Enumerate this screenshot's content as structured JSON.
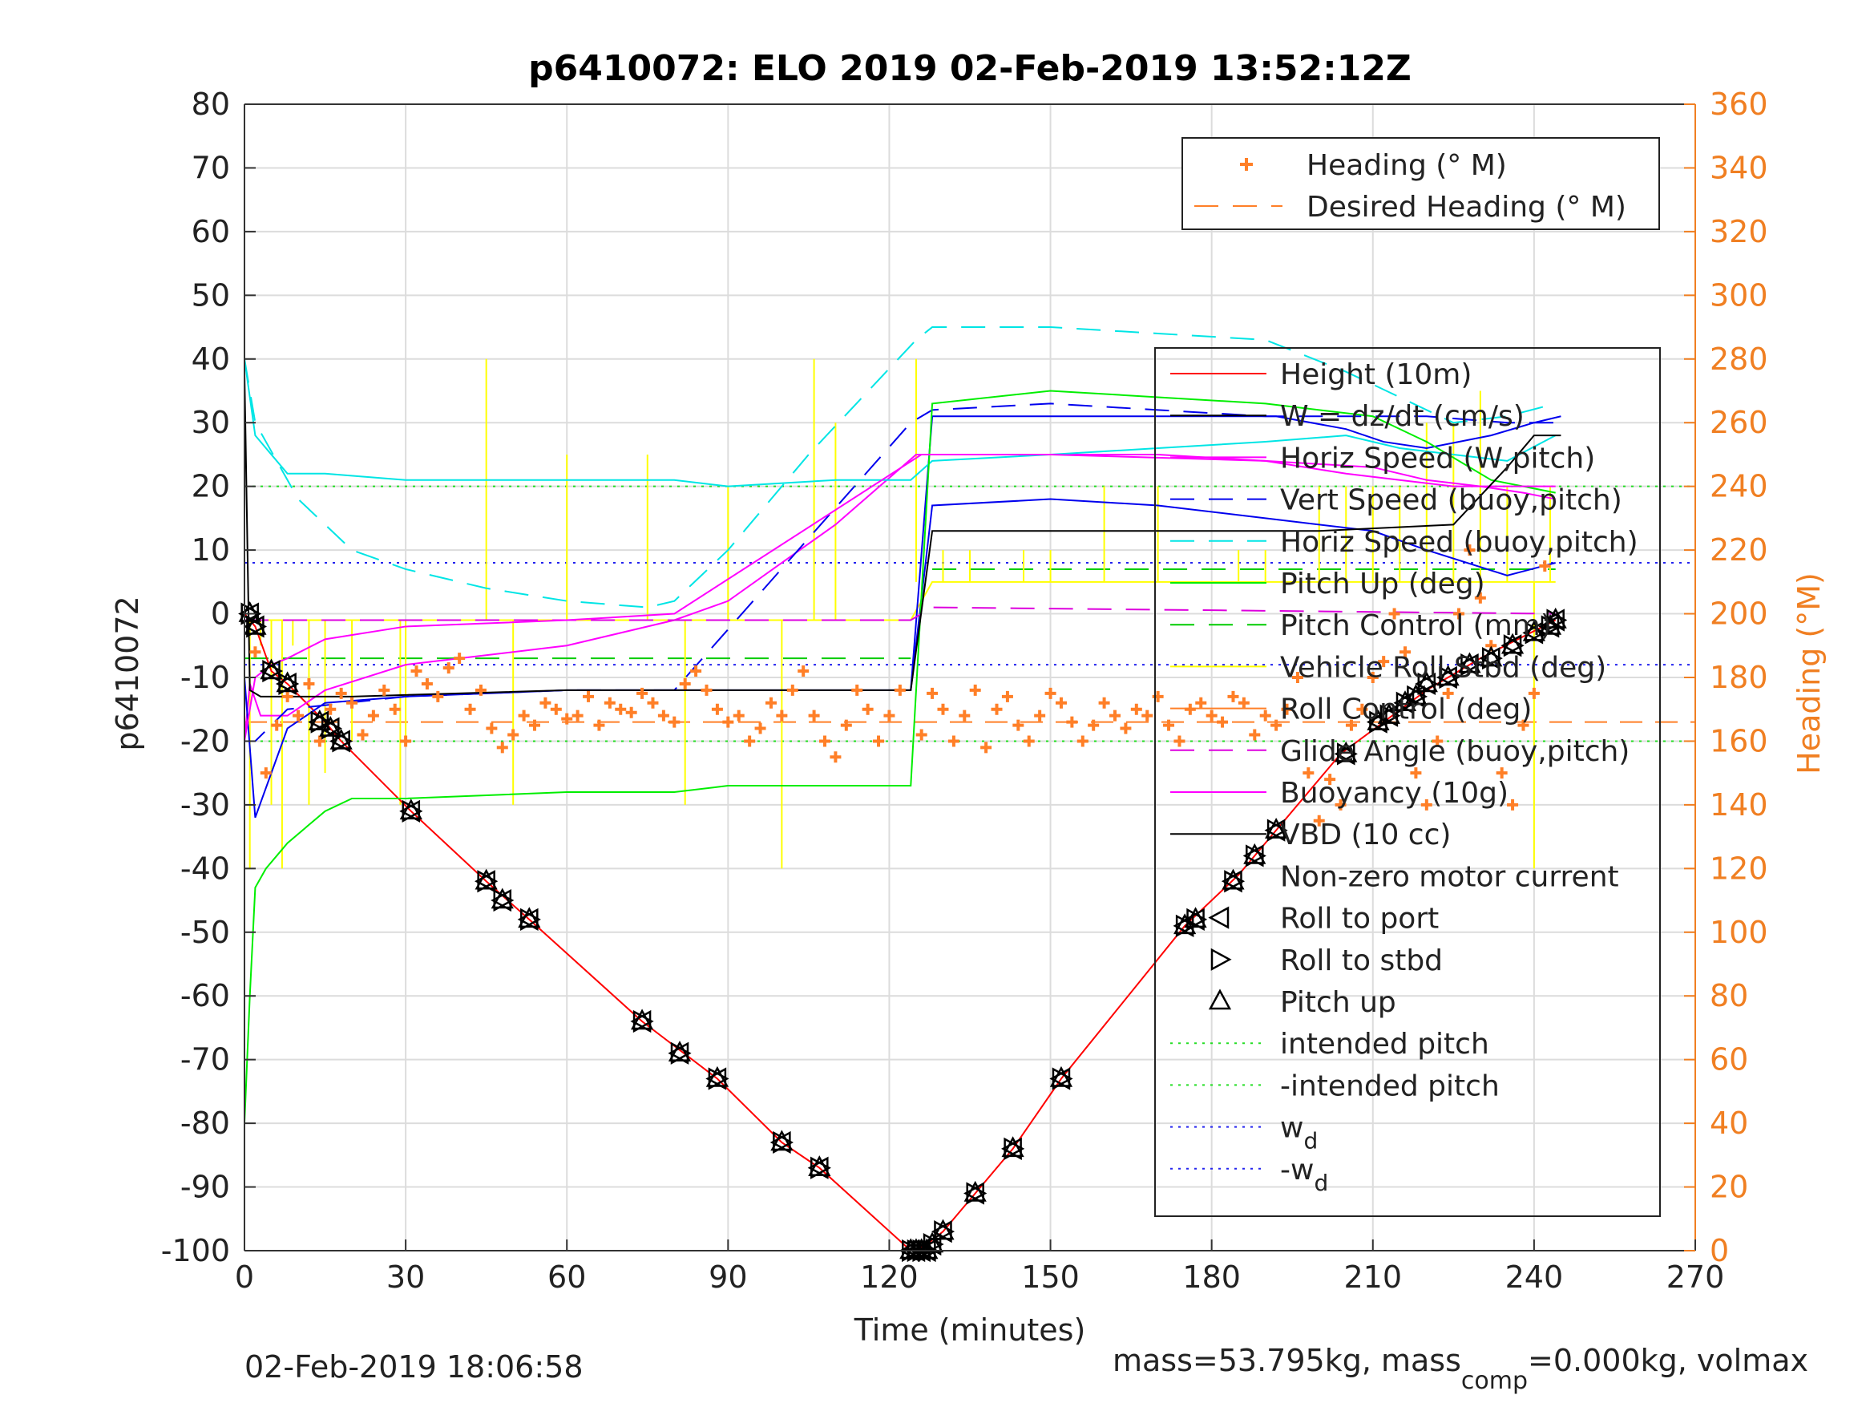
{
  "chart_data": {
    "type": "line",
    "title": "p6410072: ELO 2019 02-Feb-2019 13:52:12Z",
    "xlabel": "Time (minutes)",
    "ylabel": "p6410072",
    "y2label": "Heading (°M)",
    "xlim": [
      0,
      270
    ],
    "ylim": [
      -100,
      80
    ],
    "y2lim": [
      0,
      360
    ],
    "xticks": [
      "0",
      "30",
      "60",
      "90",
      "120",
      "150",
      "180",
      "210",
      "240",
      "270"
    ],
    "yticks": [
      "80",
      "70",
      "60",
      "50",
      "40",
      "30",
      "20",
      "10",
      "0",
      "-10",
      "-20",
      "-30",
      "-40",
      "-50",
      "-60",
      "-70",
      "-80",
      "-90",
      "-100"
    ],
    "y2ticks": [
      "360",
      "340",
      "320",
      "300",
      "280",
      "260",
      "240",
      "220",
      "200",
      "180",
      "160",
      "140",
      "120",
      "100",
      "80",
      "60",
      "40",
      "20",
      "0"
    ],
    "grid": true,
    "footer_left": "02-Feb-2019 18:06:58",
    "footer_right": "mass=53.795kg, mass",
    "footer_right_sub": "comp",
    "footer_right_tail": "=0.000kg, volmax",
    "colors": {
      "height": "#ff0000",
      "w": "#000000",
      "horiz_speed": "#ff00ff",
      "vert_speed": "#0000ee",
      "horiz_speed_buoy": "#00e5e5",
      "pitch_up": "#00ee00",
      "pitch_control": "#00cc00",
      "vehicle_roll": "#ffff00",
      "roll_control": "#ff7f27",
      "glide_angle": "#dd00dd",
      "buoyancy": "#ff00ff",
      "vbd": "#000000",
      "heading": "#ff7f27",
      "intended": "#22dd22",
      "wd": "#2222ee",
      "right_axis": "#f07f22"
    },
    "legend_heading": [
      {
        "label": "Heading (° M)"
      },
      {
        "label": "Desired Heading (° M)"
      }
    ],
    "legend_main": [
      {
        "label": "Height (10m)"
      },
      {
        "label": "W = dz/dt (cm/s)"
      },
      {
        "label": "Horiz Speed (W,pitch)"
      },
      {
        "label": "Vert Speed (buoy,pitch)"
      },
      {
        "label": "Horiz Speed (buoy,pitch)"
      },
      {
        "label": "Pitch Up (deg)"
      },
      {
        "label": "Pitch Control (mm)"
      },
      {
        "label": "Vehicle Roll Stbd (deg)"
      },
      {
        "label": "Roll Control (deg)"
      },
      {
        "label": "Glide Angle (buoy,pitch)"
      },
      {
        "label": "Buoyancy (10g)"
      },
      {
        "label": "VBD (10 cc)"
      },
      {
        "label": "Non-zero motor current"
      },
      {
        "label": "Roll to port"
      },
      {
        "label": "Roll to stbd"
      },
      {
        "label": "Pitch up"
      },
      {
        "label": "intended pitch"
      },
      {
        "label": "-intended pitch"
      },
      {
        "label": "w",
        "sub": "d"
      },
      {
        "label": "-w",
        "sub": "d"
      }
    ],
    "series": [
      {
        "key": "height",
        "name": "Height (10m)",
        "x": [
          0,
          2,
          5,
          8,
          15,
          18,
          31,
          45,
          53,
          74,
          88,
          100,
          107,
          124,
          127,
          130,
          136,
          143,
          152,
          175,
          185,
          192,
          204,
          212,
          220,
          230,
          244
        ],
        "y": [
          0,
          -2,
          -9,
          -11,
          -17,
          -20,
          -31,
          -42,
          -48,
          -64,
          -73,
          -83,
          -87,
          -100,
          -99,
          -97,
          -91,
          -84,
          -73,
          -49,
          -41,
          -34,
          -22,
          -17,
          -12,
          -7,
          -1
        ]
      },
      {
        "key": "w",
        "name": "W = dz/dt (cm/s)",
        "x": [
          124,
          128,
          150,
          170,
          192,
          205,
          212,
          220,
          232,
          240,
          245
        ],
        "y": [
          -12,
          31,
          31,
          31,
          31,
          29,
          27,
          26,
          28,
          30,
          31
        ]
      },
      {
        "key": "horiz_speed",
        "name": "Horiz Speed (W,pitch)",
        "x": [
          0,
          1,
          3,
          8,
          15,
          30,
          60,
          80,
          90,
          110,
          125,
          130,
          150,
          170,
          190,
          210,
          220,
          230,
          238,
          244
        ],
        "y": [
          -20,
          -11,
          -16,
          -16,
          -12,
          -8,
          -5,
          -1,
          2,
          14,
          25,
          25,
          25,
          25,
          24,
          23,
          21,
          20,
          19,
          18
        ]
      },
      {
        "key": "vert_speed",
        "name": "Vert Speed (buoy,pitch)",
        "x": [
          0,
          2,
          8,
          15,
          30,
          60,
          80,
          124,
          128,
          150,
          170,
          190,
          210,
          220,
          235,
          244
        ],
        "y": [
          -10,
          -32,
          -18,
          -14,
          -13,
          -12,
          -12,
          -12,
          17,
          18,
          17,
          15,
          13,
          10,
          6,
          8
        ]
      },
      {
        "key": "horiz_speed_buoy",
        "name": "Horiz Speed (buoy,pitch)",
        "x": [
          0,
          2,
          5,
          8,
          15,
          30,
          60,
          80,
          90,
          110,
          124,
          128,
          150,
          170,
          190,
          205,
          215,
          225,
          235,
          244
        ],
        "y": [
          40,
          28,
          25,
          22,
          22,
          21,
          21,
          21,
          20,
          21,
          21,
          24,
          25,
          26,
          27,
          28,
          26,
          25,
          24,
          28
        ]
      },
      {
        "key": "vert_speed_dashed",
        "name": "Vert Speed (buoy,pitch) dashed",
        "x": [
          0,
          2,
          8,
          30,
          60,
          80,
          124,
          128,
          150,
          170,
          190,
          210,
          220,
          235,
          244
        ],
        "y": [
          -20,
          -20,
          -15,
          -13,
          -12,
          -12,
          30,
          32,
          33,
          32,
          31,
          31,
          31,
          30,
          30
        ]
      },
      {
        "key": "horiz_speed_buoy_dashed",
        "name": "Horiz Speed (buoy,pitch) dashed",
        "x": [
          0,
          2,
          10,
          20,
          30,
          45,
          60,
          75,
          80,
          90,
          105,
          125,
          128,
          150,
          170,
          190,
          205,
          215,
          225,
          235,
          244
        ],
        "y": [
          40,
          30,
          18,
          10,
          7,
          4,
          2,
          1,
          2,
          10,
          25,
          43,
          45,
          45,
          44,
          43,
          38,
          34,
          30,
          31,
          33
        ]
      },
      {
        "key": "pitch_up",
        "name": "Pitch Up (deg)",
        "x": [
          0,
          1,
          2,
          4,
          8,
          15,
          20,
          30,
          60,
          80,
          90,
          110,
          124,
          128,
          150,
          170,
          190,
          210,
          220,
          232,
          244
        ],
        "y": [
          -80,
          -60,
          -43,
          -40,
          -36,
          -31,
          -29,
          -29,
          -28,
          -28,
          -27,
          -27,
          -27,
          33,
          35,
          34,
          33,
          31,
          27,
          21,
          19
        ]
      },
      {
        "key": "glide_angle",
        "name": "Glide Angle (buoy,pitch)",
        "x": [
          0,
          3,
          15,
          60,
          124,
          128,
          244
        ],
        "y": [
          -1,
          -1,
          -1,
          -1,
          -1,
          1,
          0
        ]
      },
      {
        "key": "buoyancy",
        "name": "Buoyancy (10g)",
        "x": [
          0,
          2,
          5,
          8,
          15,
          30,
          60,
          80,
          126,
          150,
          190,
          205,
          215,
          225,
          244
        ],
        "y": [
          -20,
          -10,
          -8,
          -7,
          -4,
          -2,
          -1,
          0,
          25,
          25,
          24,
          22,
          21,
          20,
          20
        ]
      },
      {
        "key": "vbd",
        "name": "VBD (10 cc)",
        "x": [
          0,
          1,
          3,
          8,
          20,
          60,
          124,
          128,
          200,
          225,
          235,
          240,
          245
        ],
        "y": [
          38,
          -12,
          -13,
          -13,
          -13,
          -12,
          -12,
          13,
          13,
          14,
          23,
          28,
          28
        ]
      }
    ],
    "reference_lines": [
      {
        "name": "intended pitch",
        "y": 20
      },
      {
        "name": "-intended pitch",
        "y": -20
      },
      {
        "name": "w_d",
        "y": 8
      },
      {
        "name": "-w_d",
        "y": -8
      },
      {
        "name": "Pitch Control (mm) upper",
        "y": -7,
        "x": [
          0,
          124
        ]
      },
      {
        "name": "Pitch Control (mm) lower",
        "y": 7,
        "x": [
          128,
          244
        ]
      },
      {
        "name": "Desired Heading (° M)",
        "y2": 166
      }
    ],
    "heading_points": {
      "x": [
        2,
        4,
        6,
        8,
        10,
        12,
        14,
        16,
        18,
        20,
        22,
        24,
        26,
        28,
        30,
        32,
        34,
        36,
        38,
        40,
        42,
        44,
        46,
        48,
        50,
        52,
        54,
        56,
        58,
        60,
        62,
        64,
        66,
        68,
        70,
        72,
        74,
        76,
        78,
        80,
        82,
        84,
        86,
        88,
        90,
        92,
        94,
        96,
        98,
        100,
        102,
        104,
        106,
        108,
        110,
        112,
        114,
        116,
        118,
        120,
        122,
        126,
        128,
        130,
        132,
        134,
        136,
        138,
        140,
        142,
        144,
        146,
        148,
        150,
        152,
        154,
        156,
        158,
        160,
        162,
        164,
        166,
        168,
        170,
        172,
        174,
        176,
        178,
        180,
        182,
        184,
        186,
        188,
        190,
        192,
        194,
        196,
        198,
        200,
        202,
        204,
        206,
        208,
        210,
        212,
        214,
        216,
        218,
        220,
        222,
        224,
        226,
        228,
        230,
        232,
        234,
        236,
        238,
        240,
        242
      ],
      "y": [
        188,
        150,
        165,
        174,
        168,
        178,
        160,
        170,
        175,
        172,
        162,
        168,
        176,
        170,
        160,
        182,
        178,
        174,
        183,
        186,
        170,
        176,
        164,
        158,
        162,
        168,
        165,
        172,
        170,
        167,
        168,
        174,
        165,
        172,
        170,
        169,
        175,
        172,
        168,
        166,
        178,
        182,
        176,
        170,
        166,
        168,
        160,
        164,
        172,
        168,
        176,
        182,
        168,
        160,
        155,
        165,
        176,
        170,
        160,
        168,
        176,
        162,
        175,
        170,
        160,
        168,
        176,
        158,
        170,
        174,
        165,
        160,
        168,
        175,
        172,
        166,
        160,
        165,
        172,
        168,
        164,
        170,
        168,
        174,
        165,
        160,
        170,
        172,
        168,
        166,
        174,
        172,
        162,
        168,
        165,
        170,
        180,
        150,
        135,
        148,
        140,
        165,
        170,
        180,
        185,
        200,
        188,
        150,
        140,
        160,
        175,
        200,
        220,
        205,
        190,
        150,
        140,
        165,
        175,
        215
      ]
    },
    "markers": {
      "x": [
        1,
        2,
        5,
        8,
        14,
        16,
        18,
        31,
        45,
        48,
        53,
        74,
        81,
        88,
        100,
        107,
        124,
        125,
        126,
        127,
        128,
        130,
        136,
        143,
        152,
        175,
        177,
        184,
        188,
        192,
        205,
        211,
        213,
        216,
        218,
        220,
        224,
        228,
        232,
        236,
        240,
        243,
        244
      ],
      "y": [
        0,
        -2,
        -9,
        -11,
        -17,
        -18,
        -20,
        -31,
        -42,
        -45,
        -48,
        -64,
        -69,
        -73,
        -83,
        -87,
        -100,
        -100,
        -100,
        -100,
        -99,
        -97,
        -91,
        -84,
        -73,
        -49,
        -48,
        -42,
        -38,
        -34,
        -22,
        -17,
        -16,
        -14,
        -13,
        -11,
        -10,
        -8,
        -7,
        -5,
        -3,
        -2,
        -1
      ]
    },
    "vehicle_roll_spikes": {
      "x": [
        1,
        3,
        5,
        7,
        9,
        12,
        15,
        20,
        29,
        30,
        45,
        50,
        60,
        75,
        82,
        90,
        100,
        106,
        110,
        125,
        130,
        135,
        145,
        150,
        160,
        170,
        185,
        190,
        200,
        205,
        210,
        215,
        220,
        225,
        230,
        235,
        240,
        243
      ],
      "y": [
        -40,
        -5,
        -30,
        -40,
        -5,
        -30,
        -25,
        -20,
        -30,
        -20,
        40,
        -30,
        25,
        25,
        -30,
        20,
        -40,
        40,
        30,
        40,
        10,
        10,
        10,
        10,
        20,
        20,
        10,
        10,
        20,
        20,
        20,
        20,
        30,
        30,
        35,
        20,
        -40,
        20
      ]
    }
  }
}
